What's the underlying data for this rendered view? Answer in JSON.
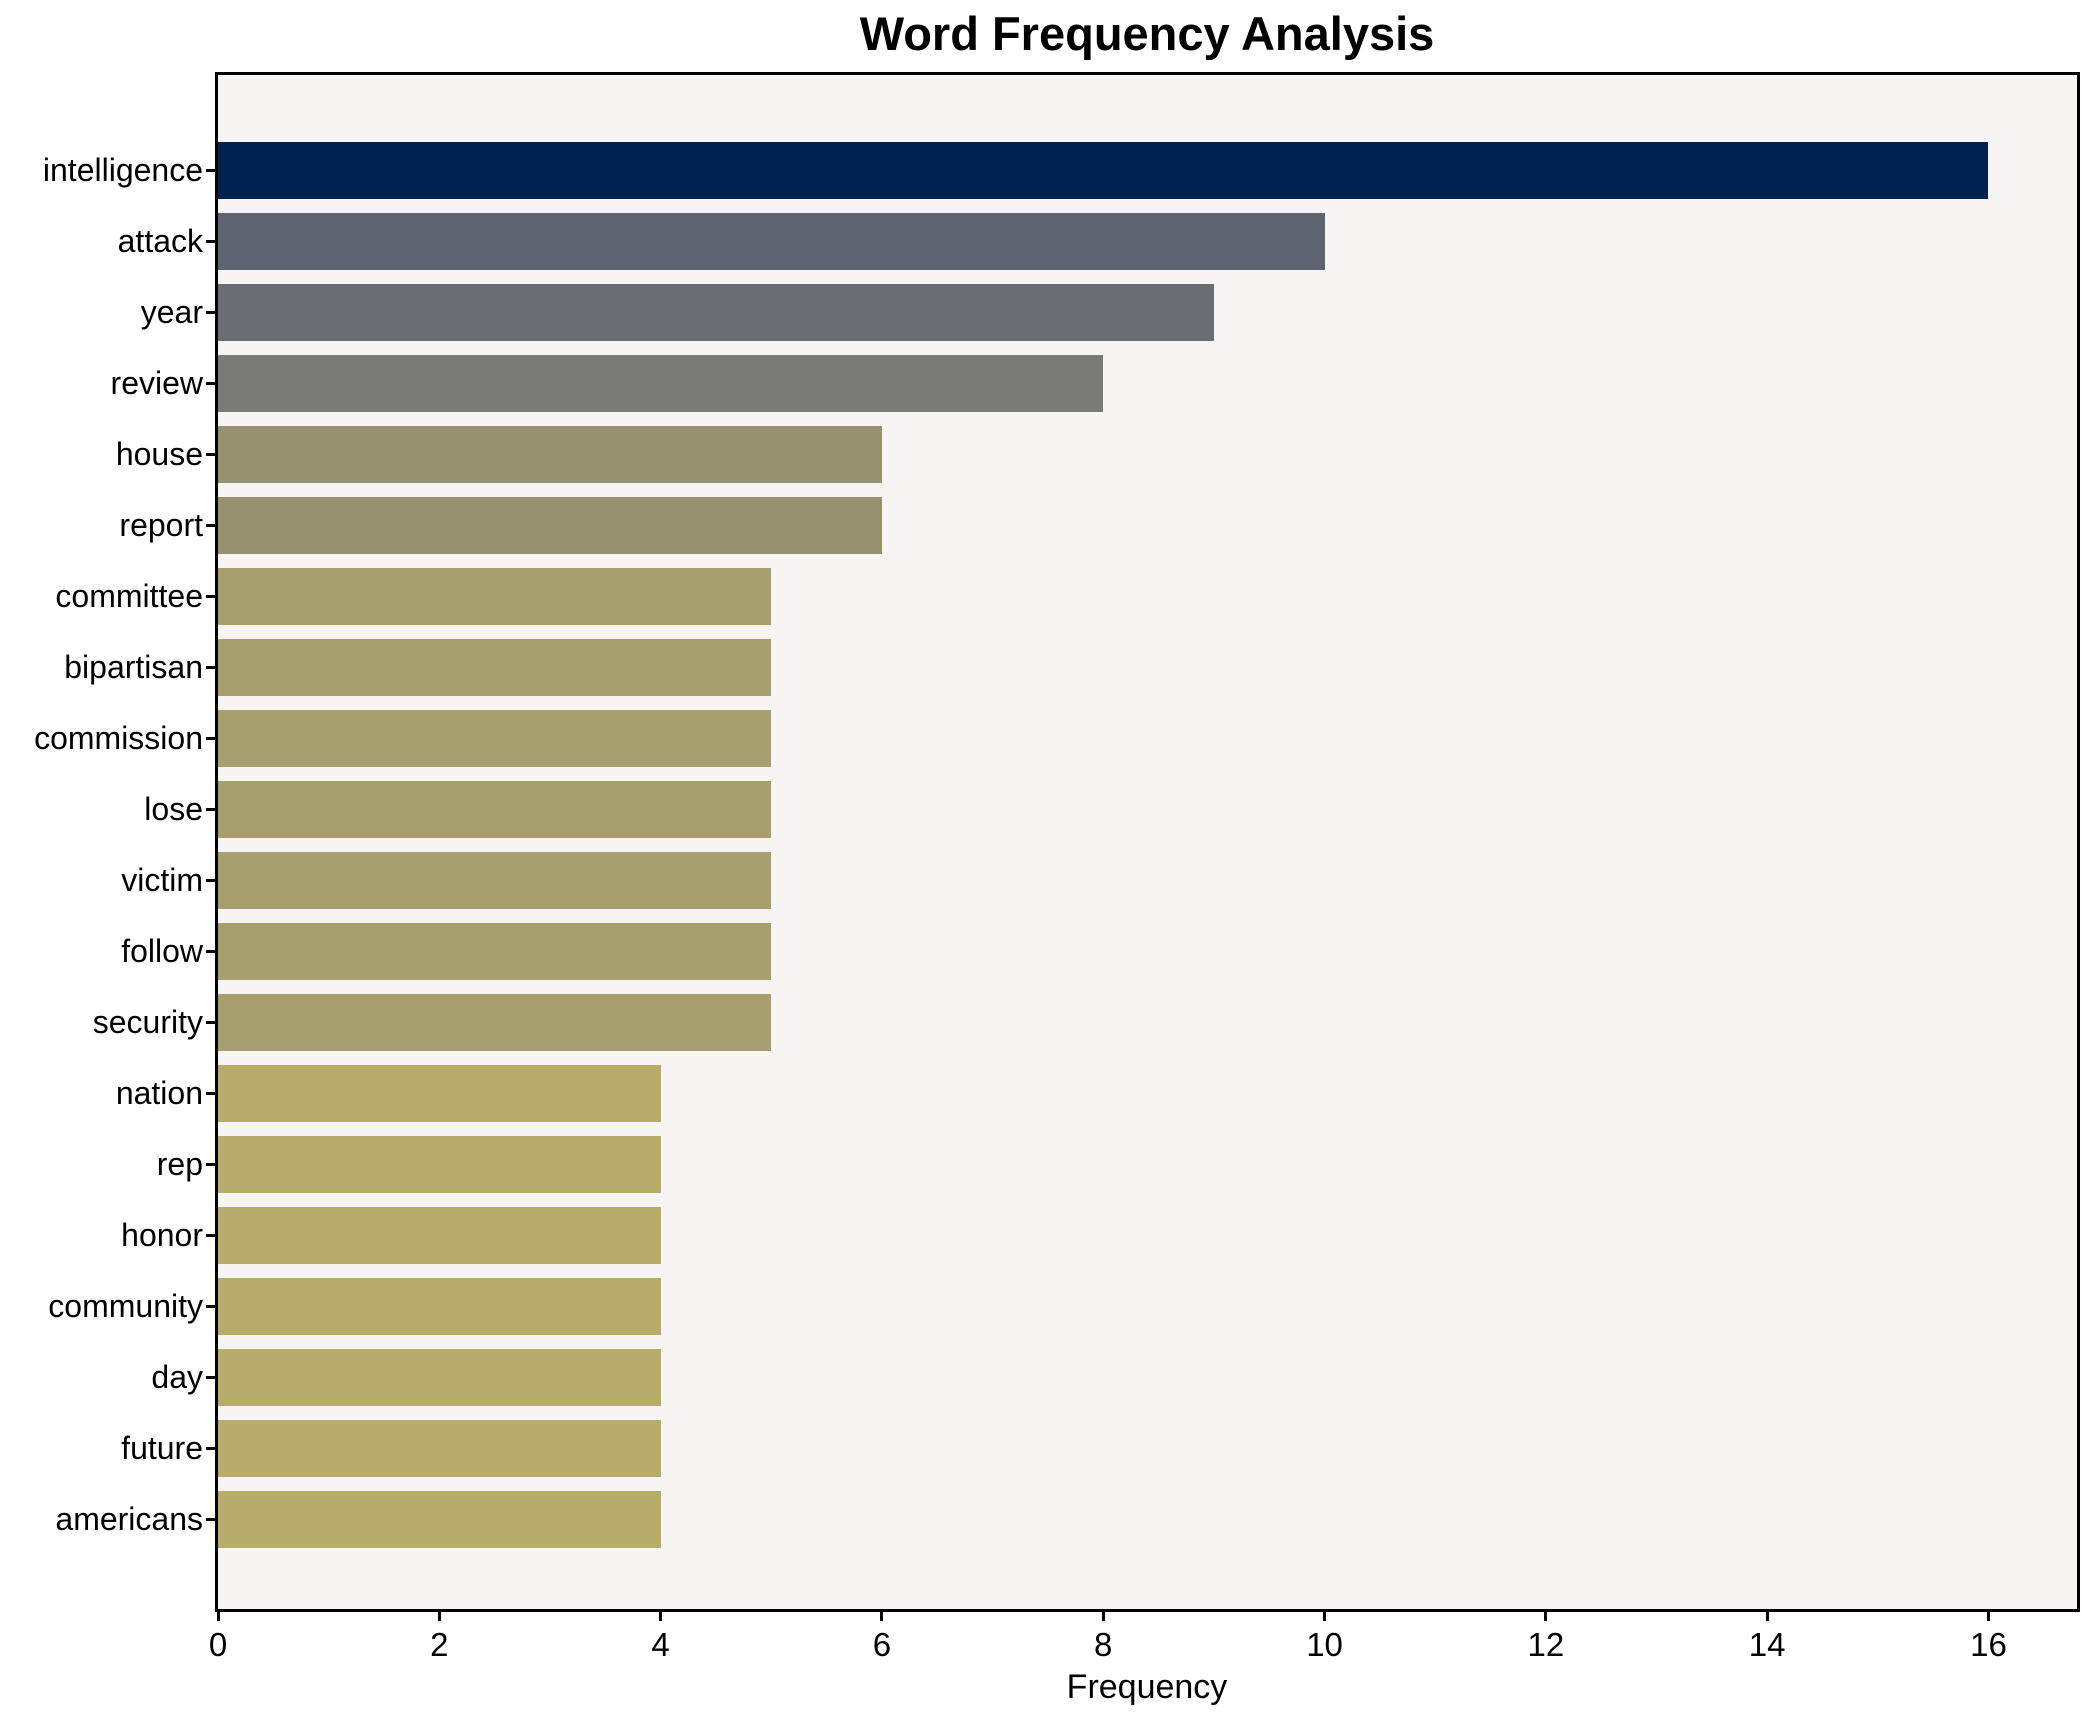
{
  "chart_data": {
    "type": "bar",
    "orientation": "horizontal",
    "title": "Word Frequency Analysis",
    "xlabel": "Frequency",
    "ylabel": "",
    "categories": [
      "intelligence",
      "attack",
      "year",
      "review",
      "house",
      "report",
      "committee",
      "bipartisan",
      "commission",
      "lose",
      "victim",
      "follow",
      "security",
      "nation",
      "rep",
      "honor",
      "community",
      "day",
      "future",
      "americans"
    ],
    "values": [
      16,
      10,
      9,
      8,
      6,
      6,
      5,
      5,
      5,
      5,
      5,
      5,
      5,
      4,
      4,
      4,
      4,
      4,
      4,
      4
    ],
    "bar_colors": [
      "#00224e",
      "#5d6370",
      "#6a6e72",
      "#7a7a78",
      "#98916f",
      "#98916f",
      "#a89f6e",
      "#a89f6e",
      "#a89f6e",
      "#a89f6e",
      "#a89f6e",
      "#a89f6e",
      "#a89f6e",
      "#b7ac69",
      "#b7ac69",
      "#b7ac69",
      "#b7ac69",
      "#b7ac69",
      "#b7ac69",
      "#b7ac69"
    ],
    "x_ticks": [
      0,
      2,
      4,
      6,
      8,
      10,
      12,
      14,
      16
    ],
    "xlim": [
      0,
      16.8
    ],
    "grid": false,
    "legend": "none",
    "plot_background": "#f6f5f4",
    "figure_background": "#ffffff",
    "spine_color": "#000000",
    "text_color": "#000000"
  }
}
